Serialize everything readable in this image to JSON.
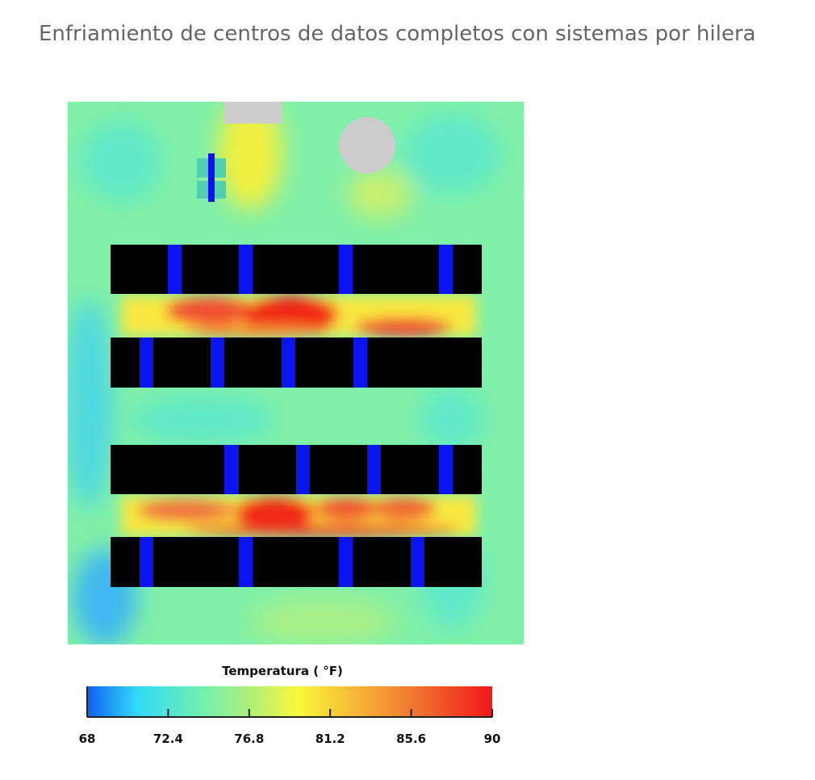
{
  "title": "Enfriamiento de centros de datos completos con sistemas por hilera",
  "legend": {
    "title": "Temperatura ( °F)",
    "ticks": [
      68,
      72.4,
      76.8,
      81.2,
      85.6,
      90
    ]
  }
}
